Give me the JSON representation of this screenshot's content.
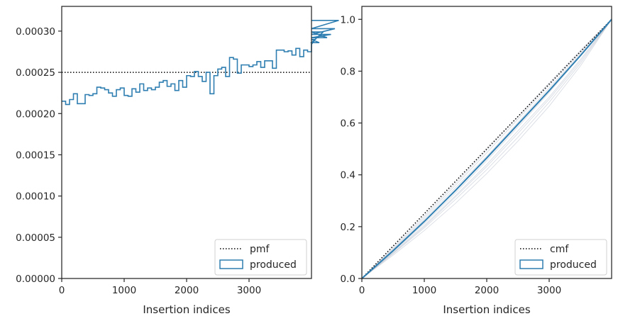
{
  "chart_data": [
    {
      "type": "step",
      "xlabel": "Insertion indices",
      "ylabel": "",
      "xlim": [
        0,
        4000
      ],
      "ylim": [
        0,
        0.00033
      ],
      "xticks": [
        0,
        1000,
        2000,
        3000
      ],
      "xtick_labels": [
        "0",
        "1000",
        "2000",
        "3000"
      ],
      "yticks": [
        0,
        5e-05,
        0.0001,
        0.00015,
        0.0002,
        0.00025,
        0.0003
      ],
      "ytick_labels": [
        "0.00000",
        "0.00005",
        "0.00010",
        "0.00015",
        "0.00020",
        "0.00025",
        "0.00030"
      ],
      "legend_position": "lower-right",
      "legend": [
        {
          "label": "pmf",
          "style": "dotted-line",
          "color": "#000000"
        },
        {
          "label": "produced",
          "style": "step-patch",
          "color": "#2e7eb1"
        }
      ],
      "reference_line": {
        "name": "pmf",
        "value": 0.00025
      },
      "series": [
        {
          "name": "produced",
          "bin_width": 62.5,
          "values": [
            0.000215,
            0.000211,
            0.000217,
            0.000224,
            0.000212,
            0.000212,
            0.000223,
            0.000222,
            0.000224,
            0.000232,
            0.000231,
            0.000229,
            0.000225,
            0.000221,
            0.000229,
            0.000231,
            0.000222,
            0.000221,
            0.00023,
            0.000226,
            0.000236,
            0.000228,
            0.000231,
            0.000229,
            0.000232,
            0.000238,
            0.00024,
            0.000233,
            0.000236,
            0.000228,
            0.00024,
            0.000232,
            0.000246,
            0.000245,
            0.000251,
            0.000245,
            0.000239,
            0.00025,
            0.000224,
            0.000246,
            0.000254,
            0.000256,
            0.000245,
            0.000268,
            0.000266,
            0.000249,
            0.000259,
            0.000259,
            0.000257,
            0.000259,
            0.000263,
            0.000256,
            0.000264,
            0.000264,
            0.000255,
            0.000277,
            0.000277,
            0.000275,
            0.000276,
            0.000271,
            0.000279,
            0.000269,
            0.000277,
            0.000275,
            0.000284,
            0.00029,
            0.000286,
            0.000299,
            0.000292,
            0.000296,
            0.000303,
            0.000313
          ]
        }
      ]
    },
    {
      "type": "line",
      "xlabel": "Insertion indices",
      "ylabel": "",
      "xlim": [
        0,
        4000
      ],
      "ylim": [
        0,
        1.05
      ],
      "xticks": [
        0,
        1000,
        2000,
        3000
      ],
      "xtick_labels": [
        "0",
        "1000",
        "2000",
        "3000"
      ],
      "yticks": [
        0,
        0.2,
        0.4,
        0.6,
        0.8,
        1.0
      ],
      "ytick_labels": [
        "0.0",
        "0.2",
        "0.4",
        "0.6",
        "0.8",
        "1.0"
      ],
      "legend_position": "lower-right",
      "legend": [
        {
          "label": "cmf",
          "style": "dotted-line",
          "color": "#000000"
        },
        {
          "label": "produced",
          "style": "line-patch",
          "color": "#2e7eb1"
        }
      ],
      "series": [
        {
          "name": "cmf",
          "x": [
            0,
            4000
          ],
          "values": [
            0,
            1
          ]
        },
        {
          "name": "produced",
          "x": [
            0,
            500,
            1000,
            1500,
            2000,
            2500,
            3000,
            3500,
            4000
          ],
          "values": [
            0,
            0.107,
            0.22,
            0.34,
            0.465,
            0.595,
            0.725,
            0.86,
            1.0
          ]
        }
      ],
      "faint_curves": {
        "color": "#b8c0cc",
        "x": [
          0,
          500,
          1000,
          1500,
          2000,
          2500,
          3000,
          3500,
          4000
        ],
        "curves": [
          [
            0,
            0.1,
            0.205,
            0.32,
            0.44,
            0.57,
            0.7,
            0.845,
            1.0
          ],
          [
            0,
            0.115,
            0.235,
            0.36,
            0.485,
            0.615,
            0.745,
            0.875,
            1.0
          ],
          [
            0,
            0.095,
            0.195,
            0.305,
            0.42,
            0.545,
            0.68,
            0.83,
            1.0
          ],
          [
            0,
            0.12,
            0.242,
            0.368,
            0.495,
            0.625,
            0.755,
            0.88,
            1.0
          ],
          [
            0,
            0.104,
            0.212,
            0.33,
            0.455,
            0.585,
            0.718,
            0.858,
            1.0
          ],
          [
            0,
            0.09,
            0.185,
            0.29,
            0.405,
            0.53,
            0.665,
            0.82,
            1.0
          ],
          [
            0,
            0.112,
            0.228,
            0.35,
            0.472,
            0.602,
            0.735,
            0.868,
            1.0
          ],
          [
            0,
            0.098,
            0.2,
            0.315,
            0.432,
            0.56,
            0.692,
            0.838,
            1.0
          ]
        ]
      }
    }
  ]
}
